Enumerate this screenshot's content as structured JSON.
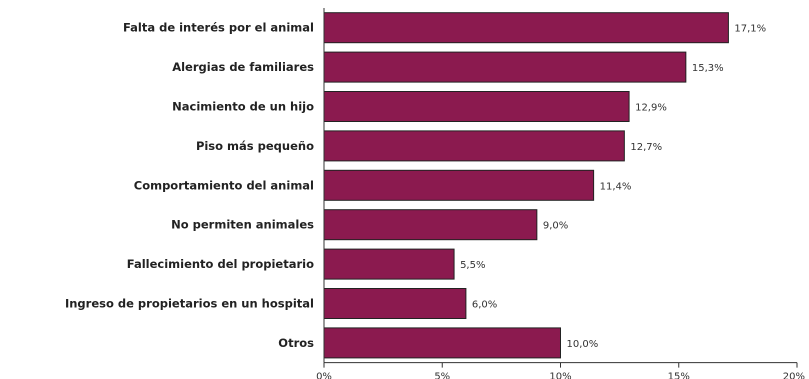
{
  "chart_data": {
    "type": "bar",
    "orientation": "horizontal",
    "categories": [
      "Falta de interés por el animal",
      "Alergias de familiares",
      "Nacimiento de un hijo",
      "Piso más pequeño",
      "Comportamiento del animal",
      "No permiten animales",
      "Fallecimiento del propietario",
      "Ingreso de propietarios en un hospital",
      "Otros"
    ],
    "values": [
      17.1,
      15.3,
      12.9,
      12.7,
      11.4,
      9.0,
      5.5,
      6.0,
      10.0
    ],
    "value_labels": [
      "17,1%",
      "15,3%",
      "12,9%",
      "12,7%",
      "11,4%",
      "9,0%",
      "5,5%",
      "6,0%",
      "10,0%"
    ],
    "xlim": [
      0,
      20
    ],
    "xticks": [
      0,
      5,
      10,
      15,
      20
    ],
    "xtick_labels": [
      "0%",
      "5%",
      "10%",
      "15%",
      "20%"
    ],
    "title": "",
    "xlabel": "",
    "ylabel": "",
    "grid": false,
    "legend": "none",
    "colors": {
      "bar": "#8B1A4F",
      "bar_edge": "#222222",
      "axis": "#333333"
    }
  }
}
